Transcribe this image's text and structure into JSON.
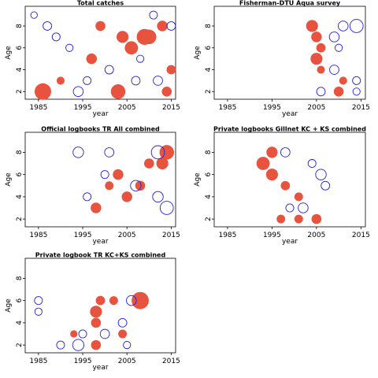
{
  "chart_data": [
    {
      "type": "scatter",
      "title": "Total catches",
      "xlabel": "year",
      "ylabel": "Age",
      "xlim": [
        1982,
        2016
      ],
      "ylim": [
        1.3,
        9.8
      ],
      "xticks": [
        1985,
        1995,
        2005,
        2015
      ],
      "yticks": [
        2,
        4,
        6,
        8
      ],
      "series": [
        {
          "name": "positive residual",
          "color": "#e8533f",
          "filled": true,
          "points": [
            [
              1986,
              2,
              2.5
            ],
            [
              1990,
              3,
              1.2
            ],
            [
              1997,
              5,
              1.6
            ],
            [
              1999,
              8,
              1.5
            ],
            [
              2003,
              2,
              2.2
            ],
            [
              2004,
              7,
              1.8
            ],
            [
              2006,
              6,
              2.0
            ],
            [
              2009,
              7,
              2.4
            ],
            [
              2010,
              7,
              2.2
            ],
            [
              2013,
              8,
              1.6
            ],
            [
              2014,
              2,
              1.5
            ],
            [
              2015,
              4,
              1.4
            ]
          ]
        },
        {
          "name": "negative residual",
          "color": "#2222dd",
          "filled": false,
          "points": [
            [
              1984,
              9,
              1.0
            ],
            [
              1987,
              8,
              1.3
            ],
            [
              1989,
              7,
              1.2
            ],
            [
              1992,
              6,
              1.1
            ],
            [
              1994,
              2,
              1.5
            ],
            [
              1996,
              3,
              1.2
            ],
            [
              2001,
              4,
              1.3
            ],
            [
              2007,
              3,
              1.3
            ],
            [
              2008,
              5,
              1.1
            ],
            [
              2011,
              9,
              1.2
            ],
            [
              2012,
              3,
              1.4
            ],
            [
              2015,
              8,
              1.3
            ]
          ]
        }
      ]
    },
    {
      "type": "scatter",
      "title": "Fisherman-DTU Aqua survey",
      "xlabel": "year",
      "ylabel": "Age",
      "xlim": [
        1982,
        2016
      ],
      "ylim": [
        1.3,
        9.8
      ],
      "xticks": [
        1985,
        1995,
        2005,
        2015
      ],
      "yticks": [
        2,
        4,
        6,
        8
      ],
      "series": [
        {
          "name": "positive residual",
          "color": "#e8533f",
          "filled": true,
          "points": [
            [
              2004,
              8,
              1.8
            ],
            [
              2005,
              5,
              1.8
            ],
            [
              2005,
              7,
              1.6
            ],
            [
              2006,
              6,
              1.4
            ],
            [
              2006,
              4,
              1.2
            ],
            [
              2010,
              2,
              1.5
            ],
            [
              2011,
              3,
              1.2
            ]
          ]
        },
        {
          "name": "negative residual",
          "color": "#2222dd",
          "filled": false,
          "points": [
            [
              2014,
              8,
              2.0
            ],
            [
              2011,
              8,
              1.5
            ],
            [
              2009,
              7,
              1.5
            ],
            [
              2010,
              6,
              1.1
            ],
            [
              2009,
              4,
              1.4
            ],
            [
              2006,
              2,
              1.3
            ],
            [
              2014,
              3,
              1.2
            ],
            [
              2014,
              2,
              1.1
            ]
          ]
        }
      ]
    },
    {
      "type": "scatter",
      "title": "Official logbooks TR All combined",
      "xlabel": "year",
      "ylabel": "Age",
      "xlim": [
        1982,
        2016
      ],
      "ylim": [
        1.3,
        9.8
      ],
      "xticks": [
        1985,
        1995,
        2005,
        2015
      ],
      "yticks": [
        2,
        4,
        6,
        8
      ],
      "series": [
        {
          "name": "positive residual",
          "color": "#e8533f",
          "filled": true,
          "points": [
            [
              2014,
              8,
              2.2
            ],
            [
              2013,
              7,
              1.8
            ],
            [
              2003,
              6,
              1.6
            ],
            [
              2008,
              5,
              1.5
            ],
            [
              2005,
              4,
              1.6
            ],
            [
              1998,
              3,
              1.6
            ],
            [
              2010,
              7,
              1.5
            ],
            [
              2001,
              5,
              1.3
            ]
          ]
        },
        {
          "name": "negative residual",
          "color": "#2222dd",
          "filled": false,
          "points": [
            [
              1994,
              8,
              1.6
            ],
            [
              2012,
              8,
              2.0
            ],
            [
              2014,
              3,
              2.0
            ],
            [
              2012,
              4,
              1.6
            ],
            [
              2007,
              5,
              1.6
            ],
            [
              2001,
              8,
              1.4
            ],
            [
              2000,
              6,
              1.2
            ],
            [
              1996,
              4,
              1.2
            ]
          ]
        }
      ]
    },
    {
      "type": "scatter",
      "title": "Private logbooks Gillnet KC + KS combined",
      "xlabel": "year",
      "ylabel": "Age",
      "xlim": [
        1982,
        2016
      ],
      "ylim": [
        1.3,
        9.8
      ],
      "xticks": [
        1985,
        1995,
        2005,
        2015
      ],
      "yticks": [
        2,
        4,
        6,
        8
      ],
      "series": [
        {
          "name": "positive residual",
          "color": "#e8533f",
          "filled": true,
          "points": [
            [
              1995,
              8,
              1.7
            ],
            [
              1993,
              7,
              2.0
            ],
            [
              1995,
              6,
              1.8
            ],
            [
              1998,
              5,
              1.4
            ],
            [
              2001,
              4,
              1.3
            ],
            [
              2001,
              2,
              1.3
            ],
            [
              2005,
              2,
              1.5
            ],
            [
              1997,
              2,
              1.3
            ]
          ]
        },
        {
          "name": "negative residual",
          "color": "#2222dd",
          "filled": false,
          "points": [
            [
              2002,
              3,
              1.5
            ],
            [
              1998,
              8,
              1.4
            ],
            [
              2006,
              6,
              1.6
            ],
            [
              2007,
              5,
              1.3
            ],
            [
              2004,
              7,
              1.2
            ],
            [
              1999,
              3,
              1.2
            ]
          ]
        }
      ]
    },
    {
      "type": "scatter",
      "title": "Private logbook TR KC+KS combined",
      "xlabel": "year",
      "ylabel": "Age",
      "xlim": [
        1982,
        2016
      ],
      "ylim": [
        1.3,
        9.8
      ],
      "xticks": [
        1985,
        1995,
        2005,
        2015
      ],
      "yticks": [
        2,
        4,
        6,
        8
      ],
      "series": [
        {
          "name": "positive residual",
          "color": "#e8533f",
          "filled": true,
          "points": [
            [
              2008,
              6,
              2.6
            ],
            [
              1998,
              5,
              1.8
            ],
            [
              1998,
              4,
              1.5
            ],
            [
              1999,
              6,
              1.4
            ],
            [
              1998,
              2,
              1.5
            ],
            [
              2004,
              3,
              1.3
            ],
            [
              2002,
              6,
              1.3
            ],
            [
              1993,
              3,
              1.1
            ]
          ]
        },
        {
          "name": "negative residual",
          "color": "#2222dd",
          "filled": false,
          "points": [
            [
              1994,
              2,
              1.7
            ],
            [
              1985,
              6,
              1.2
            ],
            [
              2006,
              6,
              1.5
            ],
            [
              2000,
              3,
              1.4
            ],
            [
              1990,
              2,
              1.2
            ],
            [
              2005,
              2,
              1.1
            ],
            [
              1985,
              5,
              1.1
            ],
            [
              1995,
              3,
              1.2
            ],
            [
              2004,
              4,
              1.3
            ]
          ]
        }
      ]
    }
  ]
}
